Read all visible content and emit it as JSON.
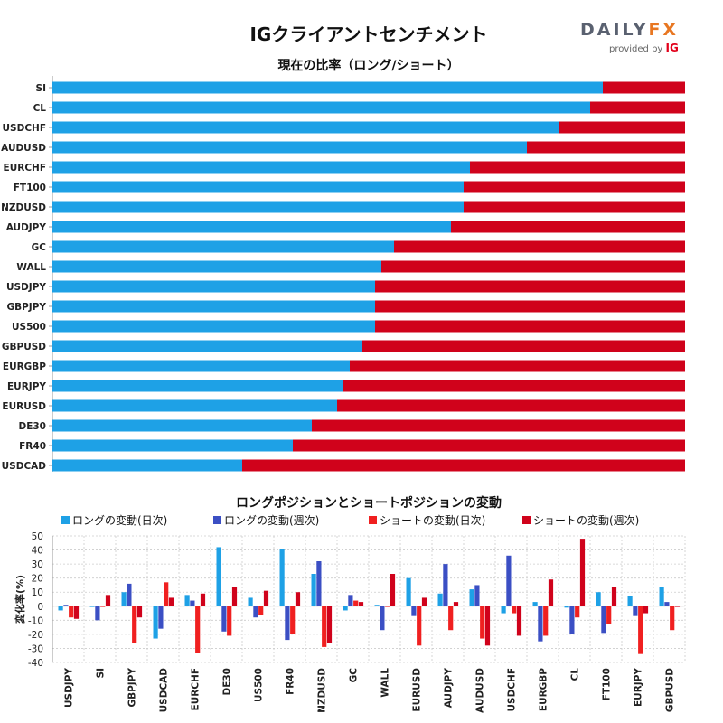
{
  "header": {
    "title": "IGクライアントセンチメント",
    "logo_main_a": "DAILY",
    "logo_main_b": "FX",
    "logo_sub": "provided by",
    "logo_ig": "IG"
  },
  "sections": {
    "ratio_title": "現在の比率（ロング/ショート）",
    "change_title": "ロングポジションとショートポジションの変動"
  },
  "colors": {
    "long": "#1ea1e6",
    "short": "#d0021b",
    "long_weekly": "#3b4fc4",
    "short_daily": "#f02020",
    "grid": "#cccccc"
  },
  "chart_data": [
    {
      "type": "bar",
      "orientation": "horizontal",
      "stacked": true,
      "title": "現在の比率（ロング/ショート）",
      "categories": [
        "SI",
        "CL",
        "USDCHF",
        "AUDUSD",
        "EURCHF",
        "FT100",
        "NZDUSD",
        "AUDJPY",
        "GC",
        "WALL",
        "USDJPY",
        "GBPJPY",
        "US500",
        "GBPUSD",
        "EURGBP",
        "EURJPY",
        "EURUSD",
        "DE30",
        "FR40",
        "USDCAD"
      ],
      "series": [
        {
          "name": "ロング",
          "values": [
            87,
            85,
            80,
            75,
            66,
            65,
            65,
            63,
            54,
            52,
            51,
            51,
            51,
            49,
            47,
            46,
            45,
            41,
            38,
            30
          ]
        },
        {
          "name": "ショート",
          "values": [
            13,
            15,
            20,
            25,
            34,
            35,
            35,
            37,
            46,
            48,
            49,
            49,
            49,
            51,
            53,
            54,
            55,
            59,
            62,
            70
          ]
        }
      ],
      "xlim": [
        0,
        100
      ]
    },
    {
      "type": "bar",
      "title": "ロングポジションとショートポジションの変動",
      "ylabel": "変化率(%)",
      "ylim": [
        -40,
        50
      ],
      "yticks": [
        -40,
        -30,
        -20,
        -10,
        0,
        10,
        20,
        30,
        40,
        50
      ],
      "categories": [
        "USDJPY",
        "SI",
        "GBPJPY",
        "USDCAD",
        "EURCHF",
        "DE30",
        "US500",
        "FR40",
        "NZDUSD",
        "GC",
        "WALL",
        "EURUSD",
        "AUDJPY",
        "AUDUSD",
        "USDCHF",
        "EURGBP",
        "CL",
        "FT100",
        "EURJPY",
        "GBPUSD"
      ],
      "series": [
        {
          "name": "ロングの変動(日次)",
          "values": [
            -3,
            0,
            10,
            -23,
            8,
            42,
            6,
            41,
            23,
            -3,
            1,
            20,
            9,
            12,
            -5,
            3,
            -1,
            10,
            7,
            14
          ]
        },
        {
          "name": "ロングの変動(週次)",
          "values": [
            1,
            -10,
            16,
            -16,
            4,
            -18,
            -8,
            -24,
            32,
            8,
            -17,
            -7,
            30,
            15,
            36,
            -25,
            -20,
            -19,
            -7,
            3
          ]
        },
        {
          "name": "ショートの変動(日次)",
          "values": [
            -8,
            0,
            -26,
            17,
            -33,
            -21,
            -6,
            -20,
            -29,
            4,
            0,
            -28,
            -17,
            -23,
            -5,
            -21,
            -8,
            -13,
            -34,
            -17
          ]
        },
        {
          "name": "ショートの変動(週次)",
          "values": [
            -9,
            8,
            -8,
            6,
            9,
            14,
            11,
            10,
            -26,
            3,
            23,
            6,
            3,
            -28,
            -21,
            19,
            48,
            14,
            -5,
            0
          ]
        }
      ]
    }
  ]
}
